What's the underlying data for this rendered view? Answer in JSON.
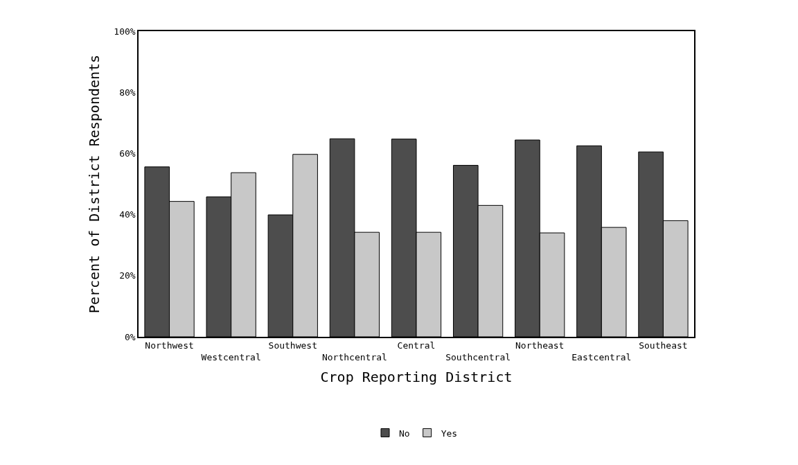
{
  "chart_data": {
    "type": "bar",
    "xlabel": "Crop Reporting District",
    "ylabel": "Percent of District Respondents",
    "categories": [
      "Northwest",
      "Westcentral",
      "Southwest",
      "Northcentral",
      "Central",
      "Southcentral",
      "Northeast",
      "Eastcentral",
      "Southeast"
    ],
    "series": [
      {
        "name": "No",
        "color": "#4d4d4d",
        "values": [
          55.6,
          45.8,
          39.9,
          64.8,
          64.7,
          56.1,
          64.4,
          62.5,
          60.5
        ]
      },
      {
        "name": "Yes",
        "color": "#c8c8c8",
        "values": [
          44.3,
          53.7,
          59.7,
          34.2,
          34.2,
          43.0,
          34.0,
          35.8,
          38.0
        ]
      }
    ],
    "ylim": [
      0,
      100
    ],
    "yticks": [
      {
        "value": 0,
        "label": "0%"
      },
      {
        "value": 20,
        "label": "20%"
      },
      {
        "value": 40,
        "label": "40%"
      },
      {
        "value": 60,
        "label": "60%"
      },
      {
        "value": 80,
        "label": "80%"
      },
      {
        "value": 100,
        "label": "100%"
      }
    ],
    "legend": "bottom"
  }
}
